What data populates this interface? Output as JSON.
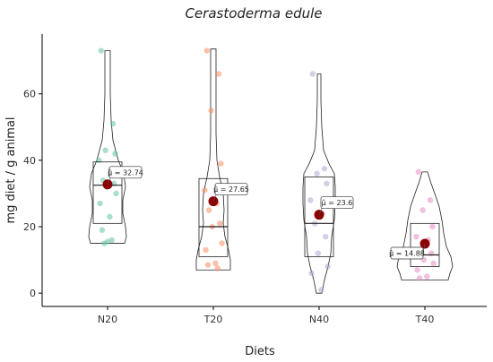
{
  "chart_data": {
    "type": "violin-box",
    "title": "Cerastoderma edule",
    "xlabel": "Diets",
    "ylabel": "mg diet / g animal",
    "ylim": [
      -4,
      78
    ],
    "yticks": [
      0,
      20,
      40,
      60
    ],
    "grid": false,
    "categories": [
      "N20",
      "T20",
      "N40",
      "T40"
    ],
    "mean_symbol": "μ̂",
    "series": [
      {
        "name": "N20",
        "color": "#66c2a5",
        "box": {
          "q1": 21,
          "median": 32.5,
          "q3": 39.5
        },
        "mean": 32.74,
        "mean_label": "32.74",
        "range": [
          15,
          73
        ],
        "points": [
          73,
          51,
          43,
          42,
          40,
          37,
          34,
          33,
          32,
          30,
          27,
          23,
          19,
          16,
          15.5,
          15
        ]
      },
      {
        "name": "T20",
        "color": "#fc8d62",
        "box": {
          "q1": 11,
          "median": 20,
          "q3": 34.5
        },
        "mean": 27.65,
        "mean_label": "27.65",
        "range": [
          7,
          73.5
        ],
        "points": [
          73,
          66,
          55,
          39,
          31,
          27,
          25,
          21,
          20,
          15,
          13,
          9,
          8.5,
          7.5
        ]
      },
      {
        "name": "N40",
        "color": "#b3a6d4",
        "box": {
          "q1": 11,
          "median": 21,
          "q3": 35
        },
        "mean": 23.6,
        "mean_label": "23.6",
        "range": [
          0,
          66
        ],
        "points": [
          66,
          37.5,
          36,
          33,
          28,
          24,
          21,
          17,
          12,
          8,
          6,
          1
        ]
      },
      {
        "name": "T40",
        "color": "#e78ac3",
        "box": {
          "q1": 8,
          "median": 11.5,
          "q3": 21
        },
        "mean": 14.88,
        "mean_label": "14.88",
        "range": [
          4,
          36.5
        ],
        "points": [
          36.5,
          28,
          25,
          20,
          17,
          16,
          13,
          12,
          10,
          9,
          7,
          5,
          4.5
        ]
      }
    ]
  }
}
